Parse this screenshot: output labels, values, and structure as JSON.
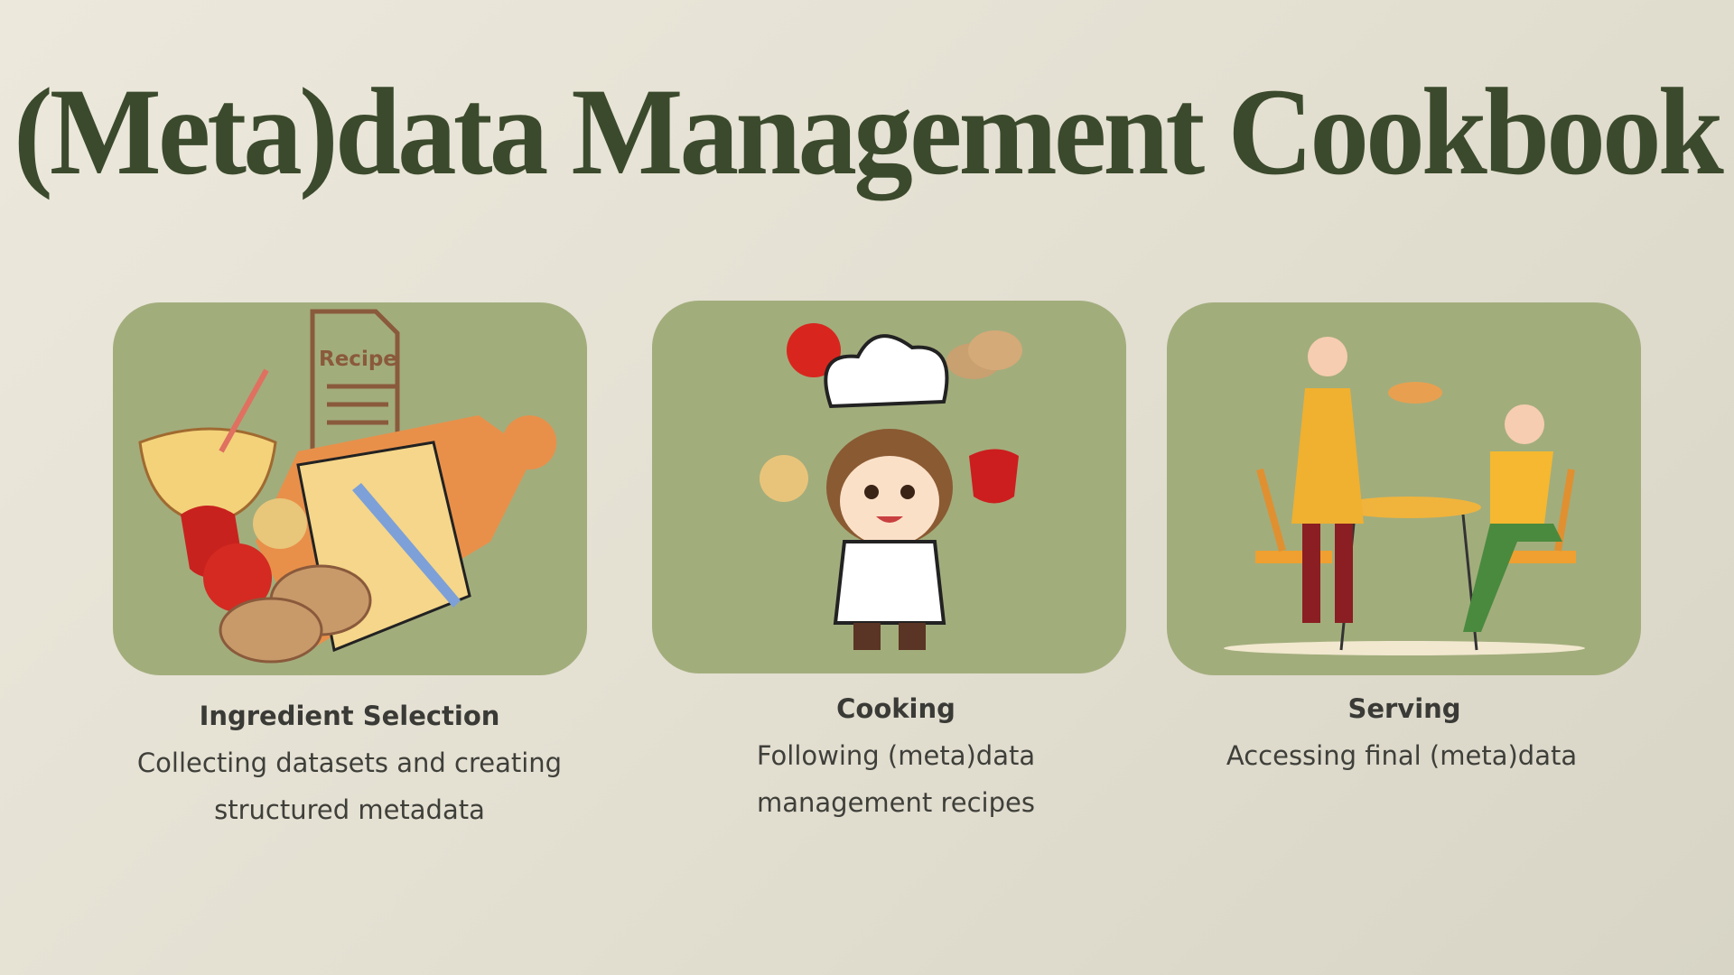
{
  "title": "(Meta)data Management Cookbook",
  "cards": [
    {
      "heading": "Ingredient Selection",
      "description": [
        "Collecting datasets and creating",
        "structured metadata"
      ],
      "image_text": "Recipe"
    },
    {
      "heading": "Cooking",
      "description": [
        "Following (meta)data",
        "management recipes"
      ]
    },
    {
      "heading": "Serving",
      "description": [
        "Accessing final (meta)data"
      ]
    }
  ]
}
